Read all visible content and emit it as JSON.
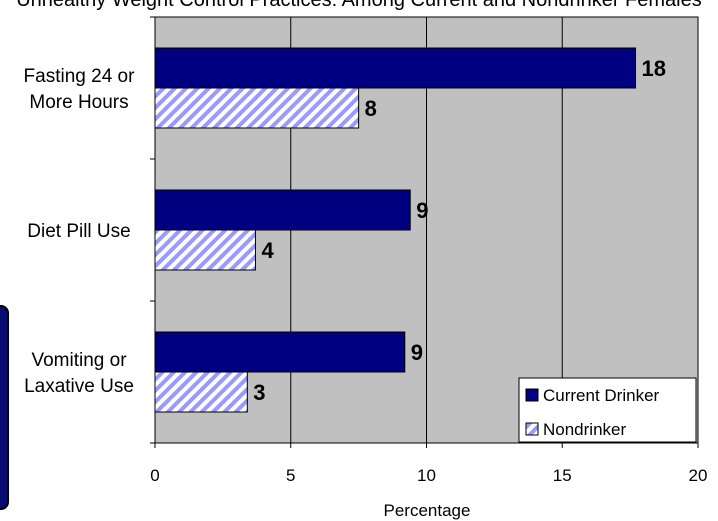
{
  "header_fragment": "Unhealthy Weight Control Practices: Among Current and Nondrinker Females",
  "chart_data": {
    "type": "bar",
    "orientation": "horizontal",
    "title": "",
    "categories": [
      [
        "Fasting 24 or",
        "More Hours"
      ],
      [
        "Diet Pill Use"
      ],
      [
        "Vomiting or",
        "Laxative Use"
      ]
    ],
    "series": [
      {
        "name": "Current Drinker",
        "values": [
          18,
          9,
          9
        ],
        "bar_extent": [
          17.7,
          9.4,
          9.2
        ],
        "color": "#000080",
        "pattern": "solid"
      },
      {
        "name": "Nondrinker",
        "values": [
          8,
          4,
          3
        ],
        "bar_extent": [
          7.5,
          3.7,
          3.4
        ],
        "color": "#9999ff",
        "pattern": "diagonal-hatch"
      }
    ],
    "xlabel": "Percentage",
    "ylabel": "",
    "xlim": [
      0,
      20
    ],
    "xticks": [
      "0",
      "5",
      "10",
      "15",
      "20"
    ],
    "grid": "vertical",
    "plot_background": "#c0c0c0",
    "legend_position": "bottom-right"
  }
}
